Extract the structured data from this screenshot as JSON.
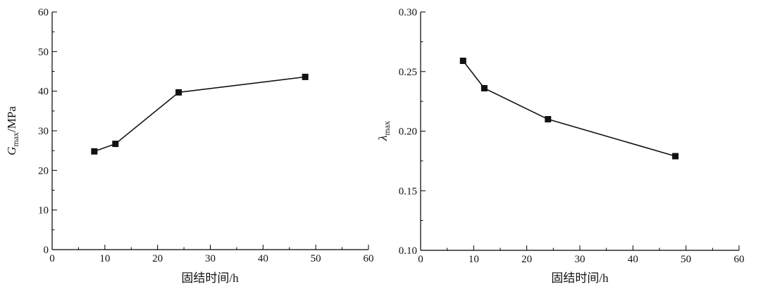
{
  "chart_data": [
    {
      "type": "line",
      "x": [
        8,
        12,
        24,
        48
      ],
      "series": [
        {
          "values": [
            24.8,
            26.7,
            39.7,
            43.6
          ]
        }
      ],
      "xlabel": "固结时间/h",
      "ylabel": {
        "symbol": "G",
        "subscript": "max",
        "unit": "/MPa"
      },
      "xlim": [
        0,
        60
      ],
      "ylim": [
        0,
        60
      ],
      "xticks": [
        "0",
        "10",
        "20",
        "30",
        "40",
        "50",
        "60"
      ],
      "yticks": [
        "0",
        "10",
        "20",
        "30",
        "40",
        "50",
        "60"
      ],
      "marker": "square",
      "grid": false
    },
    {
      "type": "line",
      "x": [
        8,
        12,
        24,
        48
      ],
      "series": [
        {
          "values": [
            0.259,
            0.236,
            0.21,
            0.179
          ]
        }
      ],
      "xlabel": "固结时间/h",
      "ylabel": {
        "symbol": "λ",
        "subscript": "max",
        "unit": ""
      },
      "xlim": [
        0,
        60
      ],
      "ylim": [
        0.1,
        0.3
      ],
      "xticks": [
        "0",
        "10",
        "20",
        "30",
        "40",
        "50",
        "60"
      ],
      "yticks": [
        "0.10",
        "0.15",
        "0.20",
        "0.25",
        "0.30"
      ],
      "marker": "square",
      "grid": false
    }
  ]
}
